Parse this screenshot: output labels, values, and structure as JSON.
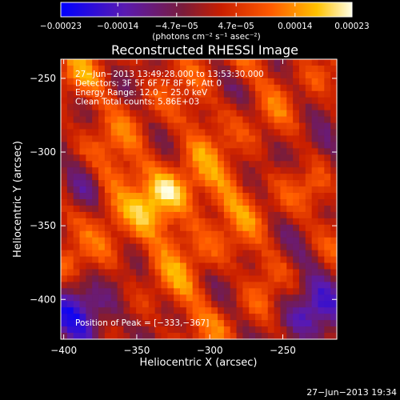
{
  "chart_data": {
    "type": "heatmap",
    "title": "Reconstructed RHESSI Image",
    "xlabel": "Heliocentric X (arcsec)",
    "ylabel": "Heliocentric Y (arcsec)",
    "xlim": [
      -402,
      -213
    ],
    "ylim": [
      -427,
      -237
    ],
    "x_ticks": [
      -400,
      -350,
      -300,
      -250
    ],
    "x_tick_labels": [
      "−400",
      "−350",
      "−300",
      "−250"
    ],
    "y_ticks": [
      -400,
      -350,
      -300,
      -250
    ],
    "y_tick_labels": [
      "−400",
      "−350",
      "−300",
      "−250"
    ],
    "colorbar": {
      "min": -0.00023,
      "max": 0.00023,
      "ticks": [
        -0.00023,
        -0.00014,
        -4.7e-05,
        4.7e-05,
        0.00014,
        0.00023
      ],
      "tick_labels": [
        "−0.00023",
        "−0.00014",
        "−4.7e−05",
        "4.7e−05",
        "0.00014",
        "0.00023"
      ],
      "units_label": "(photons cm⁻² s⁻¹ asec⁻²)"
    },
    "annotations": [
      "27−Jun−2013 13:49:28.000 to 13:53:30.000",
      "Detectors: 3F 5F 6F 7F 8F 9F, Att 0",
      "Energy Range: 12.0 − 25.0 keV",
      "Clean    Total counts: 5.86E+03"
    ],
    "peak_text": "Position of Peak = [−333,−367]",
    "peak": {
      "x": -333,
      "y": -367
    }
  },
  "footer": {
    "timestamp": "27−Jun−2013 19:34"
  }
}
